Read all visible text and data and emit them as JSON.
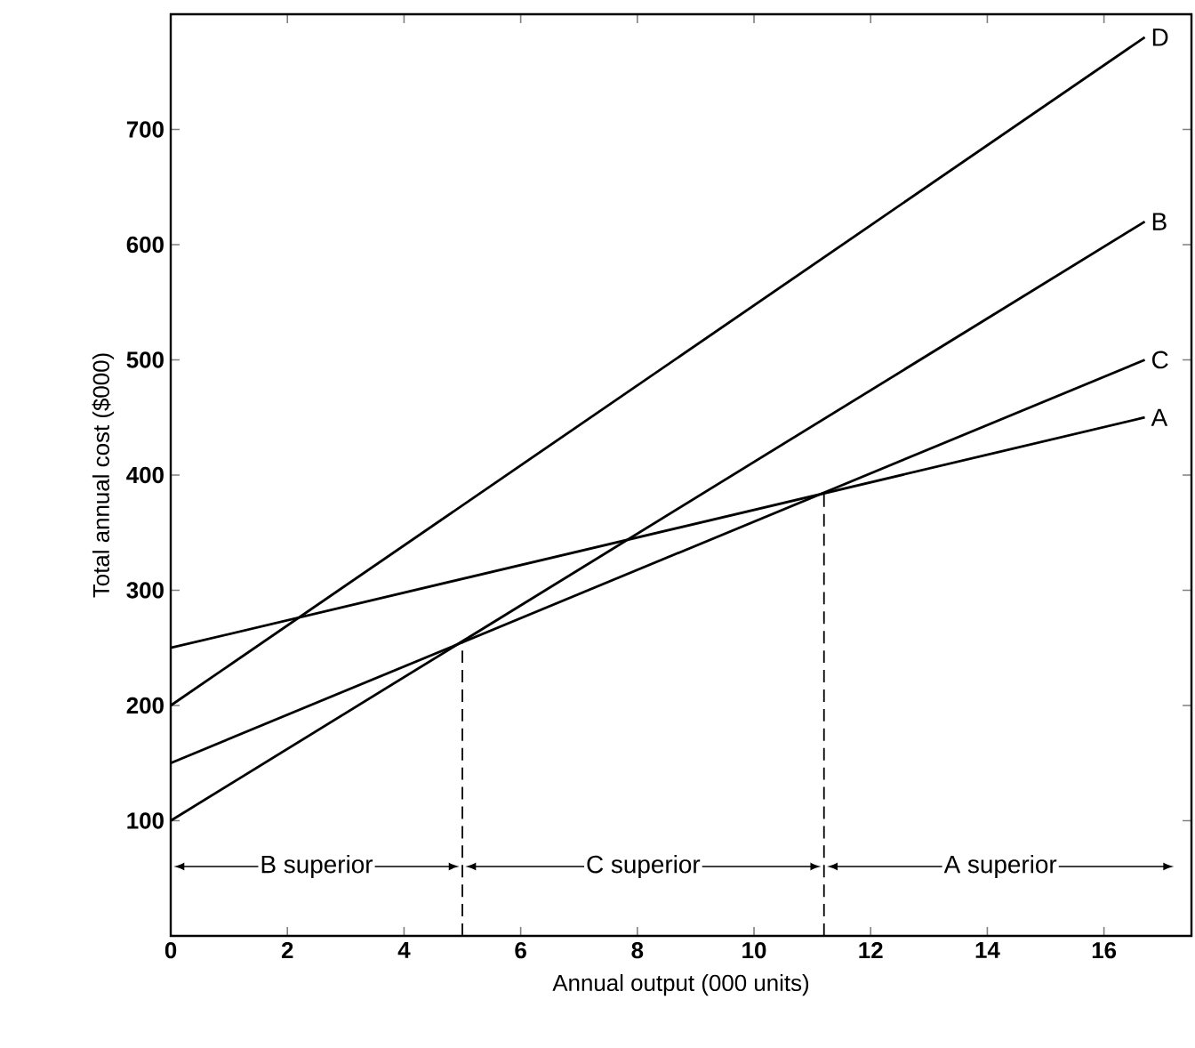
{
  "chart_data": {
    "type": "line",
    "xlabel": "Annual output (000 units)",
    "ylabel": "Total annual cost ($000)",
    "xlim": [
      0,
      17.5
    ],
    "ylim": [
      0,
      800
    ],
    "xticks": [
      0,
      2,
      4,
      6,
      8,
      10,
      12,
      14,
      16
    ],
    "yticks": [
      100,
      200,
      300,
      400,
      500,
      600,
      700
    ],
    "grid": false,
    "marker": "none",
    "series": [
      {
        "name": "D",
        "color": "#000000",
        "x": [
          0,
          16.7
        ],
        "values": [
          200,
          780
        ]
      },
      {
        "name": "B",
        "color": "#000000",
        "x": [
          0,
          16.7
        ],
        "values": [
          100,
          620
        ]
      },
      {
        "name": "C",
        "color": "#000000",
        "x": [
          0,
          16.7
        ],
        "values": [
          150,
          500
        ]
      },
      {
        "name": "A",
        "color": "#000000",
        "x": [
          0,
          16.7
        ],
        "values": [
          250,
          450
        ]
      },
      {
        "color": "#000000",
        "x": [
          5,
          5
        ],
        "values": [
          0,
          255
        ],
        "line_style": "dashed"
      },
      {
        "color": "#000000",
        "x": [
          11.2,
          11.2
        ],
        "values": [
          0,
          385
        ],
        "line_style": "dashed"
      }
    ],
    "annotations": [
      "B superior",
      "C superior",
      "A superior"
    ]
  }
}
